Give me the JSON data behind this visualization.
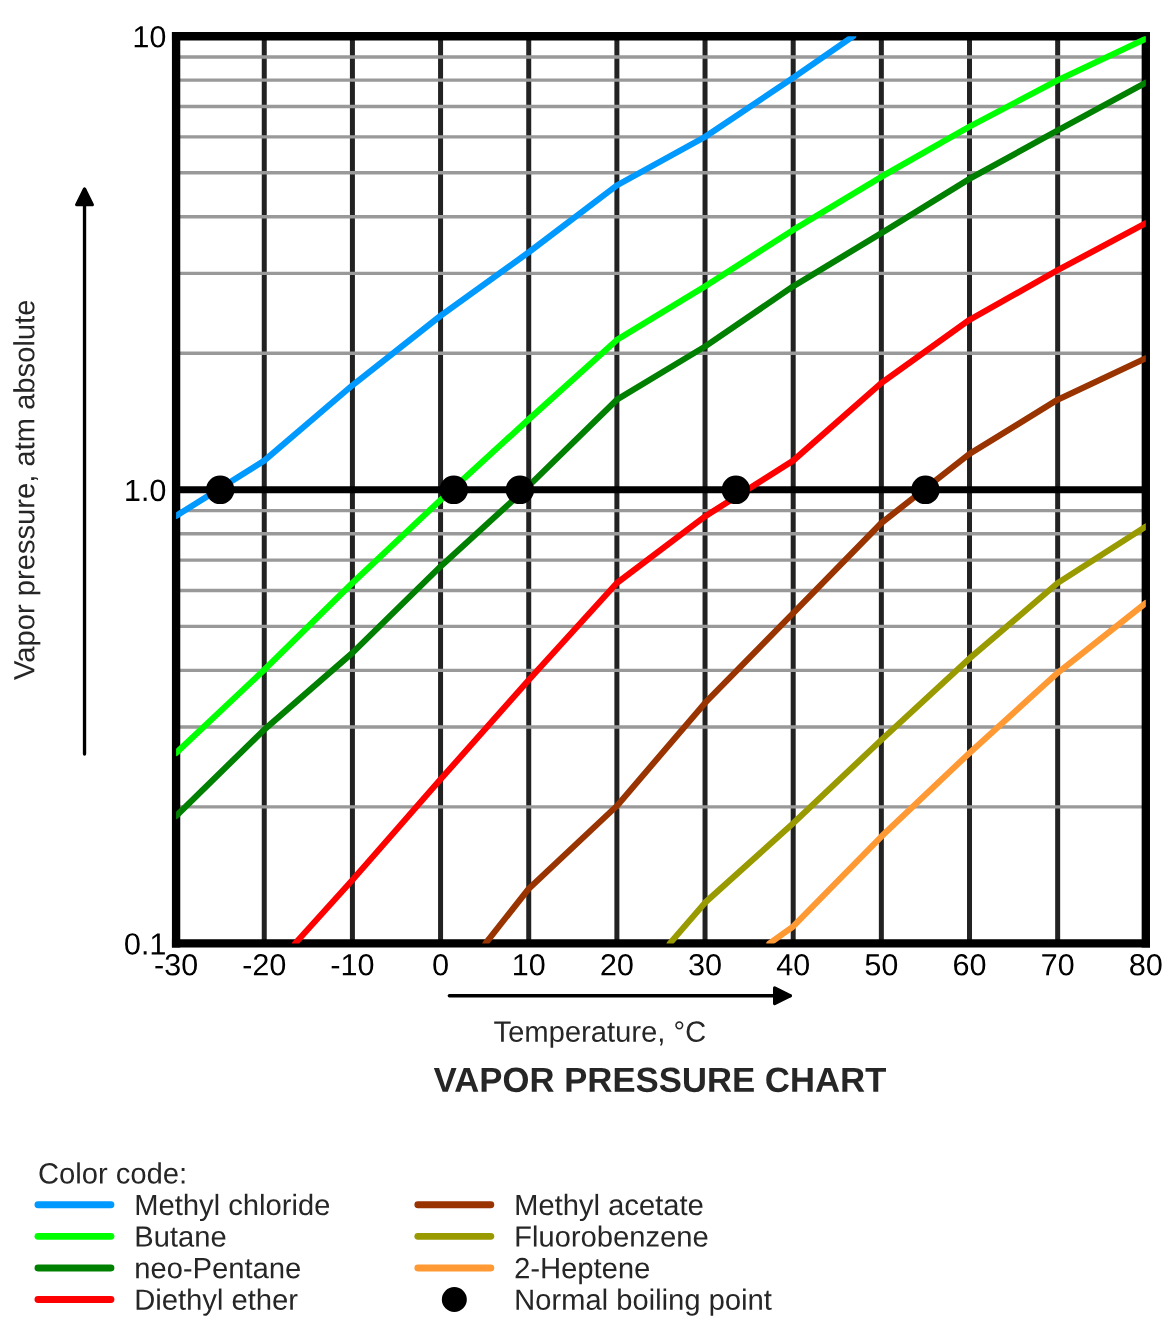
{
  "chart_data": {
    "type": "line",
    "title": "VAPOR PRESSURE CHART",
    "xlabel": "Temperature, °C",
    "ylabel": "Vapor pressure, atm absolute",
    "legend_title": "Color code:",
    "log": "y",
    "grid": true,
    "legend": "bottom",
    "marker": "none",
    "line_style": "solid",
    "xlim": [
      -30,
      80
    ],
    "xticks": [
      -30,
      -20,
      -10,
      0,
      10,
      20,
      30,
      40,
      50,
      60,
      70,
      80
    ],
    "ylim": [
      0.1,
      10
    ],
    "yticks": [
      {
        "value": 0.1,
        "label": "0.1"
      },
      {
        "value": 1,
        "label": "1.0"
      },
      10
    ],
    "ref_lines": [
      {
        "axis": "y",
        "value": 1,
        "color": "#000000"
      }
    ],
    "series": [
      {
        "name": "Methyl chloride",
        "color": "#0099ff",
        "x": [
          -30,
          -20,
          -10,
          0,
          10,
          20,
          30,
          40,
          46.8
        ],
        "values": [
          0.876,
          1.16,
          1.7,
          2.42,
          3.34,
          4.69,
          6.0,
          8.1,
          10
        ]
      },
      {
        "name": "Butane",
        "color": "#00ff00",
        "x": [
          -30,
          -20,
          -10,
          0,
          10,
          20,
          30,
          40,
          50,
          60,
          70,
          80
        ],
        "values": [
          0.263,
          0.401,
          0.623,
          0.95,
          1.43,
          2.14,
          2.81,
          3.74,
          4.9,
          6.32,
          8.0,
          9.87
        ]
      },
      {
        "name": "neo-Pentane",
        "color": "#008000",
        "x": [
          -30,
          -20,
          -10,
          0,
          10,
          20,
          30,
          40,
          50,
          60,
          70,
          80
        ],
        "values": [
          0.191,
          0.296,
          0.437,
          0.678,
          1.02,
          1.58,
          2.07,
          2.81,
          3.68,
          4.85,
          6.2,
          7.9
        ]
      },
      {
        "name": "Diethyl ether",
        "color": "#ff0000",
        "x": [
          -16.5,
          -10,
          0,
          10,
          20,
          30,
          40,
          50,
          60,
          70,
          80
        ],
        "values": [
          0.1,
          0.138,
          0.23,
          0.381,
          0.623,
          0.874,
          1.16,
          1.72,
          2.37,
          3.05,
          3.87
        ]
      },
      {
        "name": "Methyl acetate",
        "color": "#993300",
        "x": [
          5.1,
          10,
          20,
          30,
          40,
          50,
          60,
          70,
          80
        ],
        "values": [
          0.1,
          0.132,
          0.201,
          0.339,
          0.535,
          0.845,
          1.2,
          1.58,
          1.95
        ]
      },
      {
        "name": "Fluorobenzene",
        "color": "#999900",
        "x": [
          26,
          30,
          40,
          50,
          60,
          70,
          80
        ],
        "values": [
          0.1,
          0.123,
          0.184,
          0.281,
          0.425,
          0.623,
          0.83
        ]
      },
      {
        "name": "2-Heptene",
        "color": "#ff9933",
        "x": [
          37.3,
          40,
          50,
          60,
          70,
          80
        ],
        "values": [
          0.1,
          0.109,
          0.172,
          0.263,
          0.395,
          0.563
        ]
      },
      {
        "name": "Normal boiling point",
        "type": "scatter",
        "color": "#000000",
        "marker": "circle",
        "x": [
          -25,
          1.5,
          9,
          33.5,
          55
        ],
        "values": [
          1,
          1,
          1,
          1,
          1
        ]
      }
    ]
  }
}
